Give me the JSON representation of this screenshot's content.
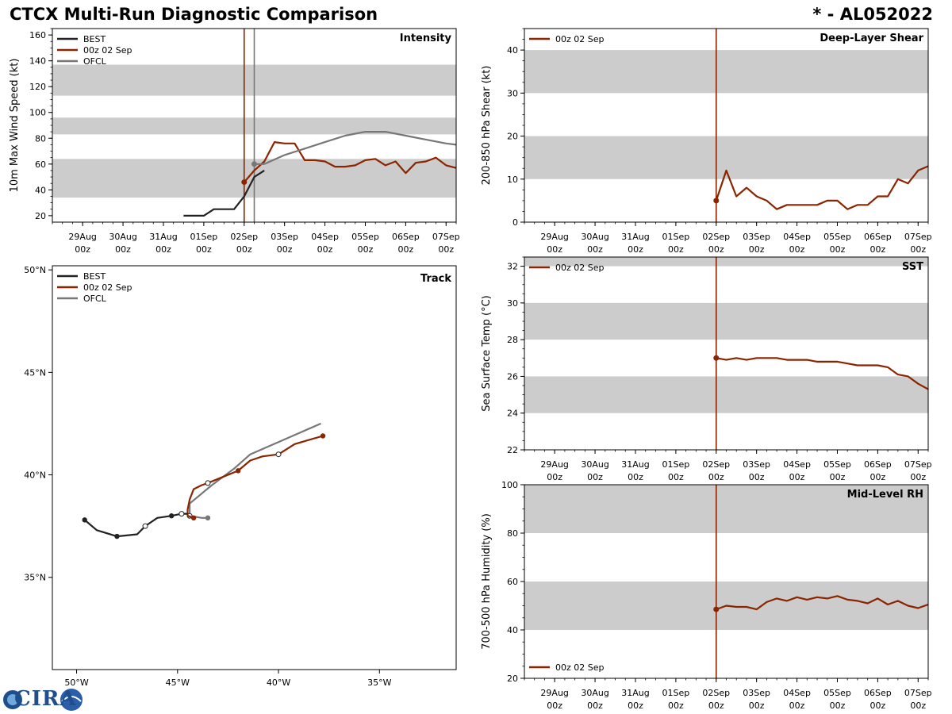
{
  "header": {
    "title": "CTCX Multi-Run Diagnostic Comparison",
    "storm": "* - AL052022"
  },
  "logo": {
    "text": "CIRA",
    "icon": "cira-logo-icon"
  },
  "colors": {
    "best": "#222222",
    "run": "#8B2500",
    "ofcl": "#777777",
    "band": "#cccccc"
  },
  "time_axis": {
    "ticks": [
      {
        "day": "29Aug",
        "hour": "00z"
      },
      {
        "day": "30Aug",
        "hour": "00z"
      },
      {
        "day": "31Aug",
        "hour": "00z"
      },
      {
        "day": "01Sep",
        "hour": "00z"
      },
      {
        "day": "02Sep",
        "hour": "00z"
      },
      {
        "day": "03Sep",
        "hour": "00z"
      },
      {
        "day": "04Sep",
        "hour": "00z"
      },
      {
        "day": "05Sep",
        "hour": "00z"
      },
      {
        "day": "06Sep",
        "hour": "00z"
      },
      {
        "day": "07Sep",
        "hour": "00z"
      }
    ],
    "range_days": [
      -0.75,
      9.25
    ],
    "init_day": 4.0
  },
  "chart_data": [
    {
      "id": "intensity",
      "type": "line",
      "title": "Intensity",
      "ylabel": "10m Max Wind Speed (kt)",
      "ylim": [
        15,
        165
      ],
      "yticks": [
        20,
        40,
        60,
        80,
        100,
        120,
        140,
        160
      ],
      "bands": [
        [
          34,
          64
        ],
        [
          83,
          96
        ],
        [
          113,
          137
        ]
      ],
      "legend": [
        "BEST",
        "00z 02 Sep",
        "OFCL"
      ],
      "vlines": [
        {
          "series": "run",
          "x": 4.0
        },
        {
          "series": "ofcl",
          "x": 4.25
        }
      ],
      "series": [
        {
          "name": "BEST",
          "key": "best",
          "x": [
            2.5,
            2.75,
            3.0,
            3.25,
            3.5,
            3.75,
            4.0,
            4.25,
            4.5
          ],
          "y": [
            20,
            20,
            20,
            25,
            25,
            25,
            35,
            50,
            55
          ]
        },
        {
          "name": "00z 02 Sep",
          "key": "run",
          "marker_first": true,
          "x": [
            4.0,
            4.25,
            4.5,
            4.75,
            5.0,
            5.25,
            5.5,
            5.75,
            6.0,
            6.25,
            6.5,
            6.75,
            7.0,
            7.25,
            7.5,
            7.75,
            8.0,
            8.25,
            8.5,
            8.75,
            9.0,
            9.25
          ],
          "y": [
            46,
            55,
            62,
            77,
            76,
            76,
            63,
            63,
            62,
            58,
            58,
            59,
            63,
            64,
            59,
            62,
            53,
            61,
            62,
            65,
            59,
            57
          ]
        },
        {
          "name": "OFCL",
          "key": "ofcl",
          "marker_first": true,
          "x": [
            4.25,
            4.5,
            5.0,
            5.5,
            6.0,
            6.5,
            7.0,
            7.5,
            8.0,
            8.5,
            9.0,
            9.25
          ],
          "y": [
            60,
            60,
            67,
            72,
            77,
            82,
            85,
            85,
            82,
            79,
            76,
            75
          ]
        }
      ]
    },
    {
      "id": "shear",
      "type": "line",
      "title": "Deep-Layer Shear",
      "ylabel": "200-850 hPa Shear (kt)",
      "ylim": [
        0,
        45
      ],
      "yticks": [
        0,
        10,
        20,
        30,
        40
      ],
      "bands": [
        [
          10,
          20
        ],
        [
          30,
          40
        ]
      ],
      "legend": [
        "00z 02 Sep"
      ],
      "vlines": [
        {
          "series": "run",
          "x": 4.0
        }
      ],
      "series": [
        {
          "name": "00z 02 Sep",
          "key": "run",
          "marker_first": true,
          "x": [
            4.0,
            4.25,
            4.5,
            4.75,
            5.0,
            5.25,
            5.5,
            5.75,
            6.0,
            6.25,
            6.5,
            6.75,
            7.0,
            7.25,
            7.5,
            7.75,
            8.0,
            8.25,
            8.5,
            8.75,
            9.0,
            9.25
          ],
          "y": [
            5,
            12,
            6,
            8,
            6,
            5,
            3,
            4,
            4,
            4,
            4,
            5,
            5,
            3,
            4,
            4,
            6,
            6,
            10,
            9,
            12,
            13
          ]
        }
      ]
    },
    {
      "id": "sst",
      "type": "line",
      "title": "SST",
      "ylabel": "Sea Surface Temp (°C)",
      "ylim": [
        22,
        32.5
      ],
      "yticks": [
        22,
        24,
        26,
        28,
        30,
        32
      ],
      "bands": [
        [
          24,
          26
        ],
        [
          28,
          30
        ],
        [
          32,
          32.5
        ]
      ],
      "legend": [
        "00z 02 Sep"
      ],
      "vlines": [
        {
          "series": "run",
          "x": 4.0
        }
      ],
      "series": [
        {
          "name": "00z 02 Sep",
          "key": "run",
          "marker_first": true,
          "x": [
            4.0,
            4.25,
            4.5,
            4.75,
            5.0,
            5.25,
            5.5,
            5.75,
            6.0,
            6.25,
            6.5,
            6.75,
            7.0,
            7.25,
            7.5,
            7.75,
            8.0,
            8.25,
            8.5,
            8.75,
            9.0,
            9.25
          ],
          "y": [
            27.0,
            26.9,
            27.0,
            26.9,
            27.0,
            27.0,
            27.0,
            26.9,
            26.9,
            26.9,
            26.8,
            26.8,
            26.8,
            26.7,
            26.6,
            26.6,
            26.6,
            26.5,
            26.1,
            26.0,
            25.6,
            25.3
          ]
        }
      ]
    },
    {
      "id": "rh",
      "type": "line",
      "title": "Mid-Level RH",
      "ylabel": "700-500 hPa Humidity (%)",
      "ylim": [
        20,
        100
      ],
      "yticks": [
        20,
        40,
        60,
        80,
        100
      ],
      "bands": [
        [
          40,
          60
        ],
        [
          80,
          100
        ]
      ],
      "legend": [
        "00z 02 Sep"
      ],
      "legend_position": "bottom-left",
      "vlines": [
        {
          "series": "run",
          "x": 4.0
        }
      ],
      "series": [
        {
          "name": "00z 02 Sep",
          "key": "run",
          "marker_first": true,
          "x": [
            4.0,
            4.25,
            4.5,
            4.75,
            5.0,
            5.25,
            5.5,
            5.75,
            6.0,
            6.25,
            6.5,
            6.75,
            7.0,
            7.25,
            7.5,
            7.75,
            8.0,
            8.25,
            8.5,
            8.75,
            9.0,
            9.25
          ],
          "y": [
            48.5,
            50,
            49.5,
            49.5,
            48.5,
            51.5,
            53,
            52,
            53.5,
            52.5,
            53.5,
            53,
            54,
            52.5,
            52,
            51,
            53,
            50.5,
            52,
            50,
            49,
            50.5
          ]
        }
      ]
    },
    {
      "id": "track",
      "type": "line",
      "title": "Track",
      "xlim": [
        -51.2,
        -31.2
      ],
      "ylim": [
        30.5,
        50.2
      ],
      "xticks": [
        -50,
        -45,
        -40,
        -35
      ],
      "xtick_labels": [
        "50°W",
        "45°W",
        "40°W",
        "35°W"
      ],
      "yticks": [
        35,
        40,
        45,
        50
      ],
      "ytick_labels": [
        "35°N",
        "40°N",
        "45°N",
        "50°N"
      ],
      "legend": [
        "BEST",
        "00z 02 Sep",
        "OFCL"
      ],
      "series": [
        {
          "name": "BEST",
          "key": "best",
          "lon": [
            -49.6,
            -49.0,
            -48.0,
            -47.0,
            -46.6,
            -46.0,
            -45.3,
            -44.8,
            -44.5
          ],
          "lat": [
            37.8,
            37.3,
            37.0,
            37.1,
            37.5,
            37.9,
            38.0,
            38.1,
            38.1
          ],
          "filled": [
            true,
            false,
            true,
            false,
            false,
            false,
            true,
            false,
            false
          ],
          "hollow": [
            false,
            false,
            false,
            false,
            true,
            false,
            false,
            true,
            false
          ]
        },
        {
          "name": "00z 02 Sep",
          "key": "run",
          "lon": [
            -44.2,
            -44.5,
            -44.5,
            -44.4,
            -44.2,
            -43.8,
            -43.5,
            -43.0,
            -42.0,
            -41.4,
            -40.8,
            -40.0,
            -39.2,
            -38.5,
            -37.8
          ],
          "lat": [
            37.9,
            38.0,
            38.3,
            38.8,
            39.3,
            39.5,
            39.6,
            39.8,
            40.2,
            40.7,
            40.9,
            41.0,
            41.5,
            41.7,
            41.9
          ],
          "filled": [
            true,
            false,
            false,
            false,
            false,
            false,
            false,
            false,
            true,
            false,
            false,
            false,
            false,
            false,
            true
          ],
          "hollow": [
            false,
            false,
            false,
            false,
            false,
            false,
            true,
            false,
            false,
            false,
            false,
            true,
            false,
            false,
            false
          ]
        },
        {
          "name": "OFCL",
          "key": "ofcl",
          "lon": [
            -43.5,
            -43.8,
            -44.4,
            -44.4,
            -43.3,
            -42.2,
            -41.4,
            -40.0,
            -37.9
          ],
          "lat": [
            37.9,
            37.9,
            38.0,
            38.6,
            39.5,
            40.3,
            41.0,
            41.6,
            42.5
          ],
          "filled": [
            true,
            false,
            false,
            false,
            false,
            false,
            false,
            false,
            false
          ],
          "hollow": [
            false,
            false,
            true,
            false,
            false,
            false,
            false,
            false,
            false
          ]
        }
      ]
    }
  ]
}
